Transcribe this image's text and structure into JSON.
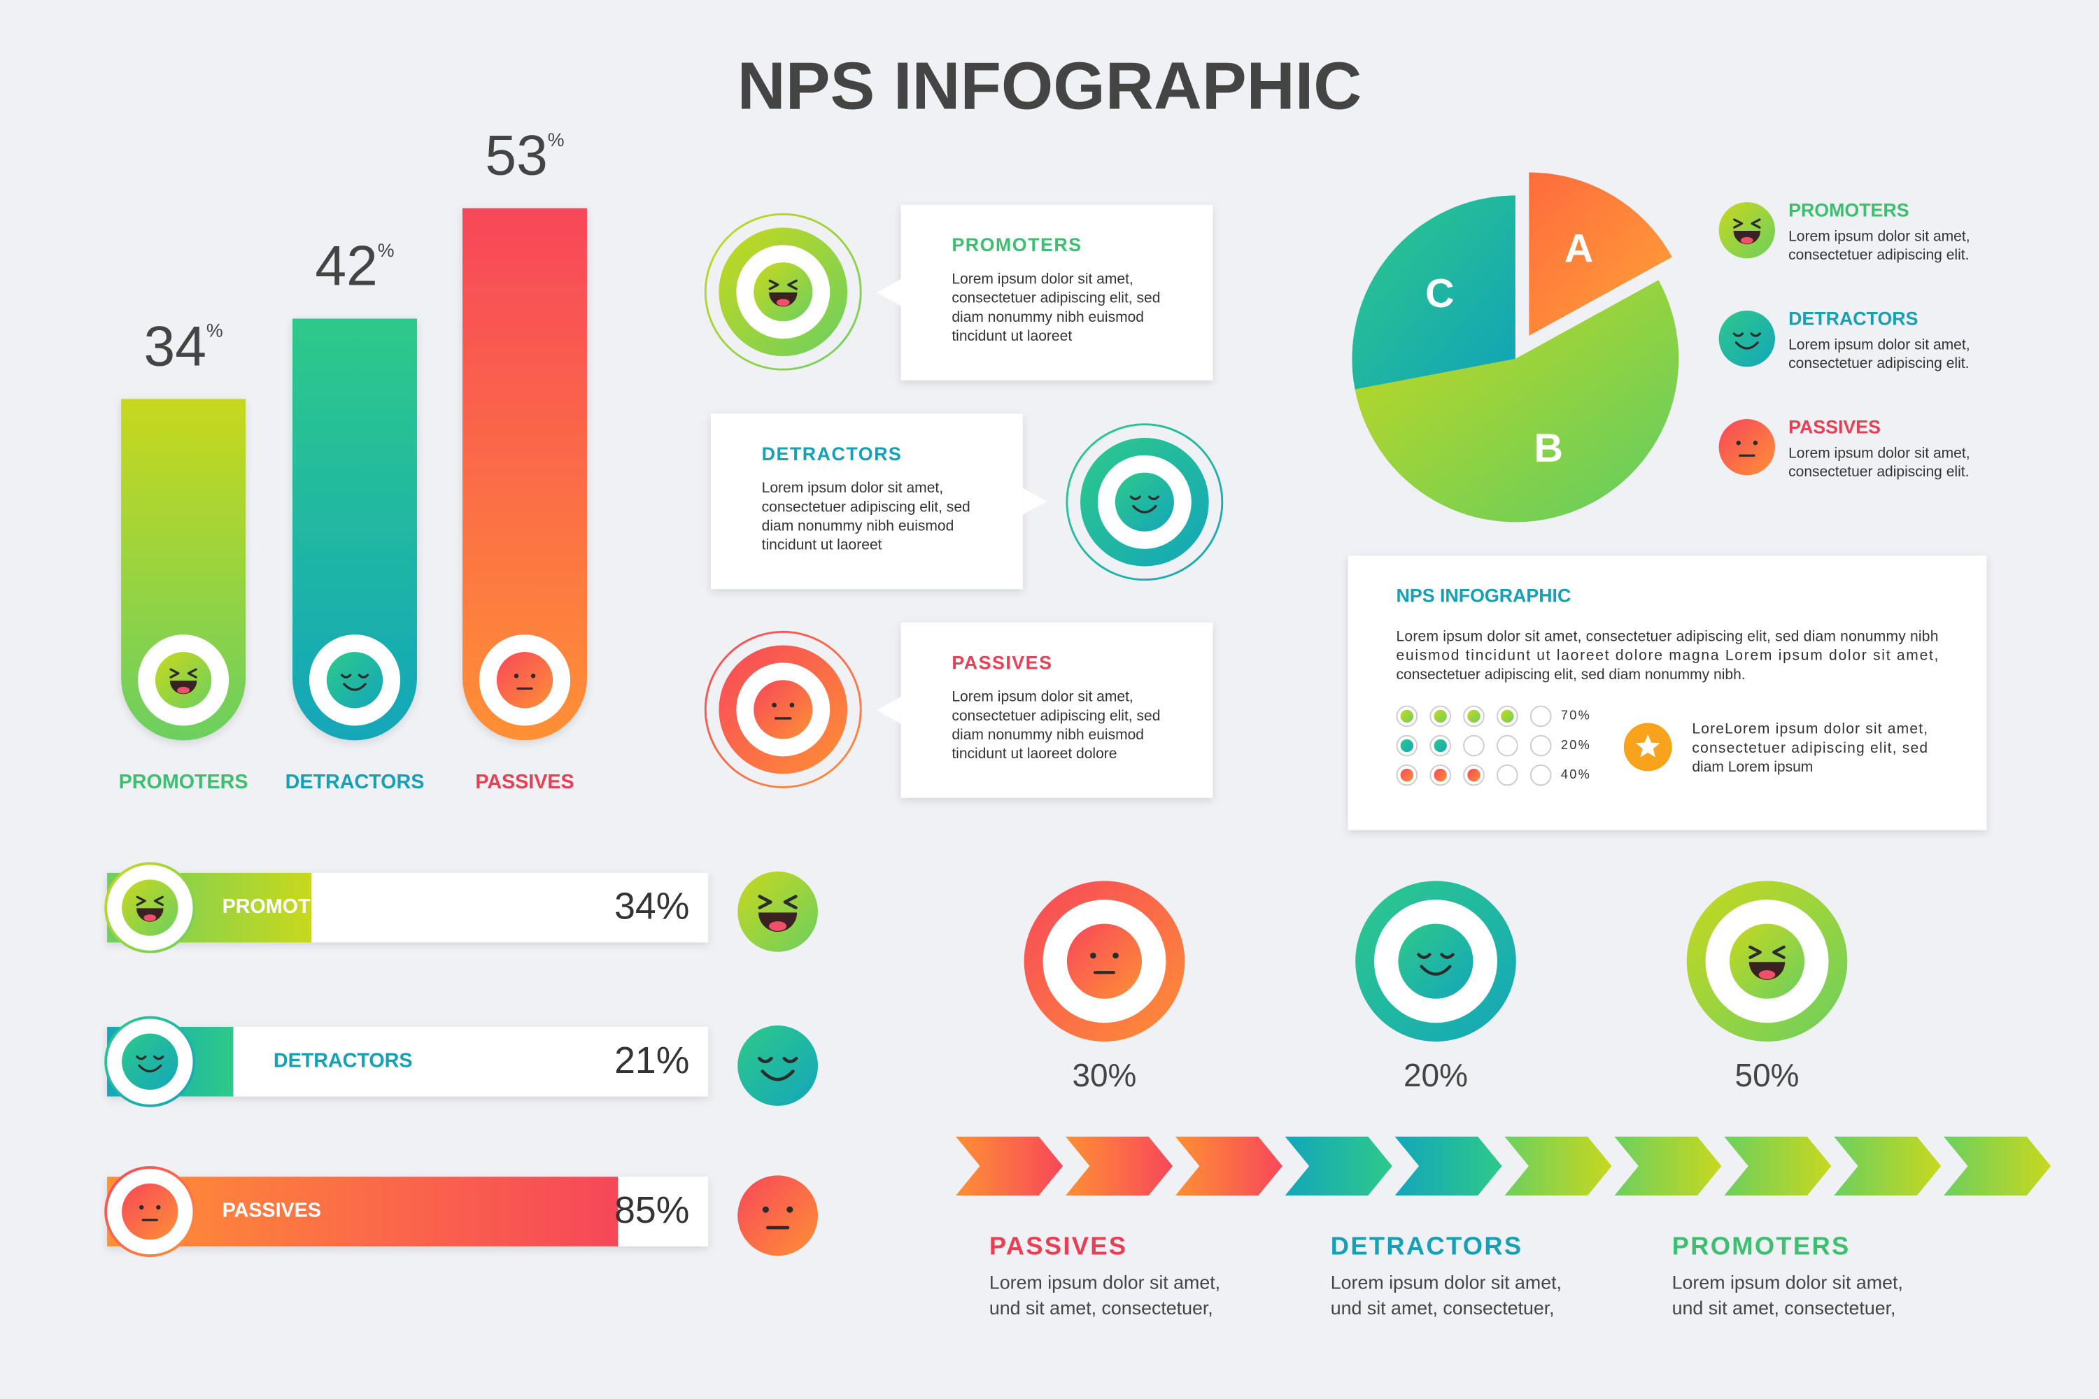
{
  "title": "NPS INFOGRAPHIC",
  "chart_data": [
    {
      "type": "bar",
      "categories": [
        "PROMOTERS",
        "DETRACTORS",
        "PASSIVES"
      ],
      "values": [
        34,
        42,
        53
      ],
      "value_suffix": "%",
      "colors": [
        [
          "#c8d81e",
          "#6ccf5f"
        ],
        [
          "#2ec98a",
          "#13a6ba"
        ],
        [
          "#f7475a",
          "#ff9035"
        ]
      ],
      "label_colors": [
        "#3dbf6f",
        "#15a0b5",
        "#e83f55"
      ]
    },
    {
      "type": "hbar",
      "categories": [
        "PROMOTERS",
        "DETRACTORS",
        "PASSIVES"
      ],
      "values": [
        34,
        21,
        85
      ],
      "value_labels": [
        "34%",
        "21%",
        "85%"
      ],
      "xlim": [
        0,
        100
      ],
      "colors": [
        [
          "#6ccf5f",
          "#c8d81e"
        ],
        [
          "#13a6ba",
          "#2ec98a"
        ],
        [
          "#ff9035",
          "#f7475a"
        ]
      ],
      "label_colors": [
        "#ffffff",
        "#15a0b5",
        "#ffffff"
      ]
    },
    {
      "type": "pie",
      "categories": [
        "A",
        "B",
        "C"
      ],
      "values": [
        17,
        55,
        28
      ],
      "colors": [
        [
          "#ff6b3d",
          "#ffa337"
        ],
        [
          "#c7d81e",
          "#5fcd63"
        ],
        [
          "#2ec98a",
          "#11a2b8"
        ]
      ]
    }
  ],
  "callouts": [
    {
      "title": "PROMOTERS",
      "color": "#3dbf6f",
      "lines": [
        "Lorem ipsum dolor sit amet,",
        "consectetuer adipiscing elit, sed",
        "diam nonummy nibh euismod",
        "tincidunt ut laoreet"
      ]
    },
    {
      "title": "DETRACTORS",
      "color": "#15a0b5",
      "lines": [
        "Lorem ipsum dolor sit amet,",
        "consectetuer adipiscing elit, sed",
        "diam nonummy nibh euismod",
        "tincidunt ut laoreet"
      ]
    },
    {
      "title": "PASSIVES",
      "color": "#e83f55",
      "lines": [
        "Lorem ipsum dolor sit amet,",
        "consectetuer adipiscing elit, sed",
        "diam nonummy nibh euismod",
        "tincidunt ut laoreet dolore"
      ]
    }
  ],
  "pie_legend": [
    {
      "title": "PROMOTERS",
      "color": "#3dbf6f",
      "lines": [
        "Lorem ipsum dolor sit amet,",
        "consectetuer adipiscing elit."
      ]
    },
    {
      "title": "DETRACTORS",
      "color": "#15a0b5",
      "lines": [
        "Lorem ipsum dolor sit amet,",
        "consectetuer adipiscing elit."
      ]
    },
    {
      "title": "PASSIVES",
      "color": "#e83f55",
      "lines": [
        "Lorem ipsum dolor sit amet,",
        "consectetuer adipiscing elit."
      ]
    }
  ],
  "card": {
    "title": "NPS INFOGRAPHIC",
    "lines": [
      "Lorem ipsum dolor sit amet, consectetuer adipiscing elit, sed diam nonummy nibh",
      "euismod tincidunt ut laoreet dolore magna Lorem ipsum dolor sit amet,",
      "consectetuer adipiscing elit, sed diam nonummy nibh."
    ],
    "rows": [
      {
        "label": "70%",
        "filled": 4
      },
      {
        "label": "20%",
        "filled": 2
      },
      {
        "label": "40%",
        "filled": 3
      }
    ],
    "note_lines": [
      "LoreLorem ipsum dolor sit amet,",
      "consectetuer adipiscing elit, sed",
      "diam Lorem ipsum"
    ]
  },
  "rings": [
    "30%",
    "20%",
    "50%"
  ],
  "steps": [
    {
      "title": "PASSIVES",
      "color": "#e83f55",
      "lines": [
        "Lorem ipsum dolor sit amet,",
        "und sit amet, consectetuer,"
      ]
    },
    {
      "title": "DETRACTORS",
      "color": "#15a0b5",
      "lines": [
        "Lorem ipsum dolor sit amet,",
        "und sit amet, consectetuer,"
      ]
    },
    {
      "title": "PROMOTERS",
      "color": "#3dbf6f",
      "lines": [
        "Lorem ipsum dolor sit amet,",
        "und sit amet, consectetuer,"
      ]
    }
  ]
}
